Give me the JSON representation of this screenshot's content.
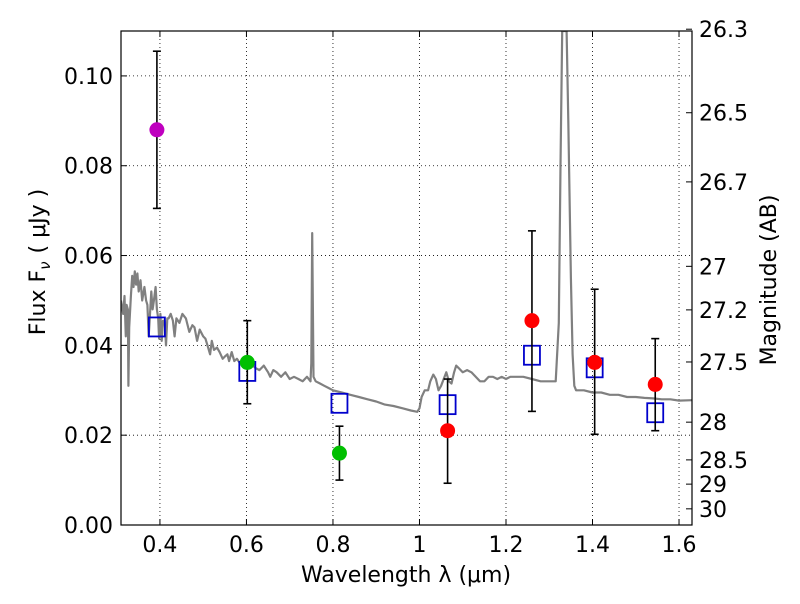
{
  "chart_data": {
    "type": "scatter",
    "title": "",
    "xlabel": "Wavelength  λ (μm)",
    "ylabel": "Flux  F",
    "ylabel_sub": "ν",
    "ylabel_unit": "( μJy )",
    "right_ylabel": "Magnitude (AB)",
    "xlim": [
      0.31,
      1.63
    ],
    "ylim": [
      0.0,
      0.11
    ],
    "grid": true,
    "x_ticks": [
      0.4,
      0.6,
      0.8,
      1.0,
      1.2,
      1.4,
      1.6
    ],
    "x_tick_labels": [
      "0.4",
      "0.6",
      "0.8",
      "1",
      "1.2",
      "1.4",
      "1.6"
    ],
    "y_ticks": [
      0.0,
      0.02,
      0.04,
      0.06,
      0.08,
      0.1
    ],
    "y_tick_labels": [
      "0.00",
      "0.02",
      "0.04",
      "0.06",
      "0.08",
      "0.10"
    ],
    "right_ticks": [
      {
        "label": "26.3",
        "flux": 0.1104
      },
      {
        "label": "26.5",
        "flux": 0.0918
      },
      {
        "label": "26.7",
        "flux": 0.0764
      },
      {
        "label": "27",
        "flux": 0.0576
      },
      {
        "label": "27.2",
        "flux": 0.0479
      },
      {
        "label": "27.5",
        "flux": 0.0363
      },
      {
        "label": "28",
        "flux": 0.0229
      },
      {
        "label": "28.5",
        "flux": 0.0145
      },
      {
        "label": "29",
        "flux": 0.0091
      },
      {
        "label": "30",
        "flux": 0.0036
      }
    ],
    "measurements": [
      {
        "x": 0.393,
        "y": 0.088,
        "err_low": 0.0705,
        "err_high": 0.1055,
        "color": "#bf00bf"
      },
      {
        "x": 0.602,
        "y": 0.0362,
        "err_low": 0.027,
        "err_high": 0.0455,
        "color": "#00bf00"
      },
      {
        "x": 0.815,
        "y": 0.016,
        "err_low": 0.01,
        "err_high": 0.022,
        "color": "#00bf00"
      },
      {
        "x": 1.065,
        "y": 0.021,
        "err_low": 0.0093,
        "err_high": 0.0325,
        "color": "#ff0000"
      },
      {
        "x": 1.26,
        "y": 0.0455,
        "err_low": 0.0253,
        "err_high": 0.0655,
        "color": "#ff0000"
      },
      {
        "x": 1.405,
        "y": 0.0362,
        "err_low": 0.0202,
        "err_high": 0.0525,
        "color": "#ff0000"
      },
      {
        "x": 1.545,
        "y": 0.0313,
        "err_low": 0.021,
        "err_high": 0.0415,
        "color": "#ff0000"
      }
    ],
    "model_photometry": [
      {
        "x": 0.393,
        "y": 0.0441
      },
      {
        "x": 0.602,
        "y": 0.0342
      },
      {
        "x": 0.815,
        "y": 0.0271
      },
      {
        "x": 1.065,
        "y": 0.0268
      },
      {
        "x": 1.26,
        "y": 0.0378
      },
      {
        "x": 1.405,
        "y": 0.035
      },
      {
        "x": 1.545,
        "y": 0.025
      }
    ],
    "model_spectrum": {
      "color": "#808080",
      "points": [
        [
          0.31,
          0.05
        ],
        [
          0.315,
          0.047
        ],
        [
          0.318,
          0.051
        ],
        [
          0.321,
          0.042
        ],
        [
          0.323,
          0.049
        ],
        [
          0.326,
          0.048
        ],
        [
          0.327,
          0.031
        ],
        [
          0.329,
          0.044
        ],
        [
          0.333,
          0.051
        ],
        [
          0.336,
          0.0555
        ],
        [
          0.339,
          0.053
        ],
        [
          0.342,
          0.0565
        ],
        [
          0.345,
          0.0535
        ],
        [
          0.348,
          0.056
        ],
        [
          0.351,
          0.052
        ],
        [
          0.355,
          0.0545
        ],
        [
          0.359,
          0.05
        ],
        [
          0.364,
          0.053
        ],
        [
          0.368,
          0.05
        ],
        [
          0.371,
          0.049
        ],
        [
          0.374,
          0.042
        ],
        [
          0.377,
          0.047
        ],
        [
          0.38,
          0.052
        ],
        [
          0.383,
          0.048
        ],
        [
          0.386,
          0.05
        ],
        [
          0.39,
          0.053
        ],
        [
          0.393,
          0.048
        ],
        [
          0.396,
          0.046
        ],
        [
          0.398,
          0.0415
        ],
        [
          0.401,
          0.047
        ],
        [
          0.404,
          0.041
        ],
        [
          0.407,
          0.0455
        ],
        [
          0.411,
          0.0455
        ],
        [
          0.414,
          0.04
        ],
        [
          0.417,
          0.046
        ],
        [
          0.42,
          0.046
        ],
        [
          0.425,
          0.047
        ],
        [
          0.43,
          0.0455
        ],
        [
          0.434,
          0.042
        ],
        [
          0.438,
          0.046
        ],
        [
          0.445,
          0.045
        ],
        [
          0.452,
          0.047
        ],
        [
          0.46,
          0.046
        ],
        [
          0.468,
          0.043
        ],
        [
          0.475,
          0.0445
        ],
        [
          0.48,
          0.044
        ],
        [
          0.486,
          0.041
        ],
        [
          0.492,
          0.0435
        ],
        [
          0.5,
          0.042
        ],
        [
          0.505,
          0.0415
        ],
        [
          0.51,
          0.04
        ],
        [
          0.516,
          0.038
        ],
        [
          0.52,
          0.041
        ],
        [
          0.525,
          0.039
        ],
        [
          0.532,
          0.0395
        ],
        [
          0.538,
          0.0385
        ],
        [
          0.545,
          0.037
        ],
        [
          0.55,
          0.0375
        ],
        [
          0.556,
          0.038
        ],
        [
          0.56,
          0.0365
        ],
        [
          0.566,
          0.0385
        ],
        [
          0.572,
          0.0365
        ],
        [
          0.578,
          0.037
        ],
        [
          0.585,
          0.036
        ],
        [
          0.592,
          0.037
        ],
        [
          0.6,
          0.035
        ],
        [
          0.61,
          0.036
        ],
        [
          0.62,
          0.035
        ],
        [
          0.63,
          0.0345
        ],
        [
          0.64,
          0.0355
        ],
        [
          0.65,
          0.034
        ],
        [
          0.655,
          0.033
        ],
        [
          0.662,
          0.0345
        ],
        [
          0.67,
          0.034
        ],
        [
          0.68,
          0.033
        ],
        [
          0.69,
          0.034
        ],
        [
          0.7,
          0.0325
        ],
        [
          0.71,
          0.033
        ],
        [
          0.72,
          0.0325
        ],
        [
          0.73,
          0.032
        ],
        [
          0.74,
          0.033
        ],
        [
          0.748,
          0.032
        ],
        [
          0.75,
          0.036
        ],
        [
          0.752,
          0.065
        ],
        [
          0.755,
          0.033
        ],
        [
          0.76,
          0.032
        ],
        [
          0.77,
          0.0315
        ],
        [
          0.78,
          0.031
        ],
        [
          0.79,
          0.0305
        ],
        [
          0.8,
          0.03
        ],
        [
          0.82,
          0.0295
        ],
        [
          0.84,
          0.029
        ],
        [
          0.86,
          0.0285
        ],
        [
          0.88,
          0.028
        ],
        [
          0.9,
          0.0275
        ],
        [
          0.92,
          0.0268
        ],
        [
          0.94,
          0.0265
        ],
        [
          0.96,
          0.026
        ],
        [
          0.98,
          0.0255
        ],
        [
          0.995,
          0.0252
        ],
        [
          1.0,
          0.026
        ],
        [
          1.005,
          0.0285
        ],
        [
          1.012,
          0.03
        ],
        [
          1.02,
          0.03
        ],
        [
          1.025,
          0.032
        ],
        [
          1.032,
          0.0335
        ],
        [
          1.038,
          0.0325
        ],
        [
          1.044,
          0.03
        ],
        [
          1.05,
          0.031
        ],
        [
          1.056,
          0.0325
        ],
        [
          1.062,
          0.034
        ],
        [
          1.068,
          0.032
        ],
        [
          1.074,
          0.0315
        ],
        [
          1.08,
          0.034
        ],
        [
          1.085,
          0.0355
        ],
        [
          1.09,
          0.035
        ],
        [
          1.1,
          0.034
        ],
        [
          1.11,
          0.0345
        ],
        [
          1.12,
          0.034
        ],
        [
          1.13,
          0.033
        ],
        [
          1.14,
          0.032
        ],
        [
          1.15,
          0.032
        ],
        [
          1.16,
          0.033
        ],
        [
          1.17,
          0.033
        ],
        [
          1.18,
          0.0325
        ],
        [
          1.19,
          0.033
        ],
        [
          1.2,
          0.0325
        ],
        [
          1.21,
          0.033
        ],
        [
          1.22,
          0.033
        ],
        [
          1.24,
          0.033
        ],
        [
          1.26,
          0.0325
        ],
        [
          1.28,
          0.032
        ],
        [
          1.3,
          0.032
        ],
        [
          1.315,
          0.032
        ],
        [
          1.322,
          0.045
        ],
        [
          1.326,
          0.08
        ],
        [
          1.33,
          0.11
        ],
        [
          1.34,
          0.11
        ],
        [
          1.344,
          0.09
        ],
        [
          1.35,
          0.055
        ],
        [
          1.354,
          0.038
        ],
        [
          1.358,
          0.031
        ],
        [
          1.362,
          0.03
        ],
        [
          1.38,
          0.03
        ],
        [
          1.4,
          0.0295
        ],
        [
          1.42,
          0.0295
        ],
        [
          1.44,
          0.029
        ],
        [
          1.46,
          0.029
        ],
        [
          1.48,
          0.0285
        ],
        [
          1.5,
          0.0285
        ],
        [
          1.52,
          0.0283
        ],
        [
          1.54,
          0.0282
        ],
        [
          1.56,
          0.028
        ],
        [
          1.58,
          0.028
        ],
        [
          1.6,
          0.0277
        ],
        [
          1.63,
          0.0278
        ]
      ]
    }
  }
}
